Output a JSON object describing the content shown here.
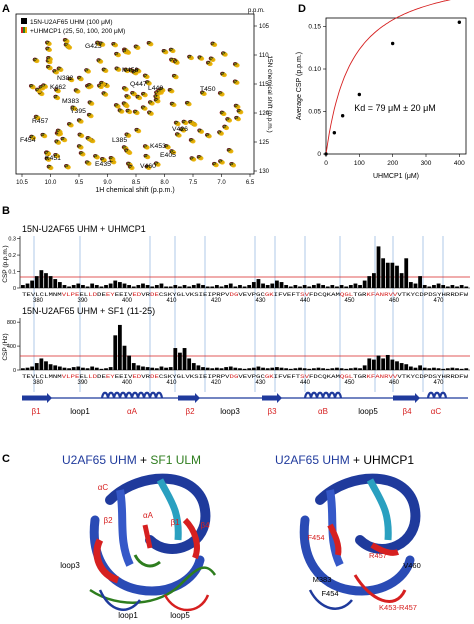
{
  "panels": {
    "A": {
      "letter": "A",
      "legend": [
        "15N-U2AF65 UHM (100 μM)",
        "+UHMCP1 (25, 50, 100, 200 μM)"
      ],
      "xlabel": "1H chemical shift (p.p.m.)",
      "ylabel": "15N chemical shift (p.p.m.)",
      "ppm_top": "p.p.m.",
      "x_ticks": [
        "10.5",
        "10.0",
        "9.5",
        "9.0",
        "8.5",
        "8.0",
        "7.5",
        "7.0",
        "6.5"
      ],
      "y_ticks": [
        "105",
        "110",
        "115",
        "120",
        "125",
        "130"
      ],
      "peaks": [
        "G423",
        "N456",
        "N382",
        "Q447",
        "K462",
        "L449",
        "T450",
        "M383",
        "R457",
        "Y395",
        "F454",
        "V426",
        "L385",
        "K453",
        "E405",
        "K451",
        "E435",
        "V460"
      ]
    },
    "D": {
      "letter": "D",
      "ylabel": "Average CSP (p.p.m.)",
      "xlabel": "UHMCP1 (μM)",
      "ppm_top": "p.p.m.",
      "annotation": "Kd = 79 μM ± 20 μM",
      "x_ticks": [
        "0",
        "100",
        "200",
        "300",
        "400"
      ],
      "y_ticks": [
        "0",
        "0.05",
        "0.10",
        "0.15"
      ]
    },
    "B": {
      "letter": "B",
      "title_top": "15N-U2AF65 UHM + UHMCP1",
      "title_bottom": "15N-U2AF65 UHM + SF1 (11-25)",
      "ylabel_top": "CSP (p.p.m.)",
      "ylabel_bottom": "CSP (Hz)",
      "y_ticks_top": [
        "0",
        "0.1",
        "0.2",
        "0.3"
      ],
      "y_ticks_bottom": [
        "0",
        "400",
        "800"
      ],
      "sequence": "TEVLCLMNMVLPEELLDDEEYEEIVEDVRDECSKYGLVKSIEIPRPVDGVEVPGCGKIFVEFTSVFDCQKAMQGLTGRKFANRVVVTKYCDPDSYHRRDFW",
      "residue_ticks": [
        "380",
        "390",
        "400",
        "410",
        "420",
        "430",
        "440",
        "450",
        "460",
        "470"
      ],
      "ss_labels": [
        "β1",
        "loop1",
        "αA",
        "β2",
        "loop3",
        "β3",
        "αB",
        "loop5",
        "β4",
        "αC"
      ]
    },
    "C": {
      "letter": "C",
      "left_title_parts": [
        "U2AF65 UHM",
        " + ",
        "SF1 ULM"
      ],
      "right_title_parts": [
        "U2AF65 UHM",
        " + UHMCP1"
      ],
      "left_labels": [
        "αC",
        "β2",
        "αA",
        "β1",
        "β4",
        "loop3",
        "loop1",
        "loop5"
      ],
      "right_labels": [
        "F454",
        "R457",
        "V460",
        "M383",
        "F454",
        "K453-R457"
      ]
    }
  },
  "colors": {
    "red": "#d62020",
    "blue": "#1f3a9c",
    "green": "#2e7d1e",
    "black": "#000000"
  },
  "chart_data": [
    {
      "type": "scatter",
      "title": "",
      "xlabel": "UHMCP1 (μM)",
      "ylabel": "Average CSP (p.p.m.)",
      "x": [
        0,
        25,
        50,
        100,
        200,
        400
      ],
      "y": [
        0.0,
        0.025,
        0.045,
        0.07,
        0.13,
        0.155
      ],
      "xlim": [
        0,
        420
      ],
      "ylim": [
        0,
        0.16
      ]
    },
    {
      "type": "bar",
      "title": "15N-U2AF65 UHM + UHMCP1",
      "ylabel": "CSP (p.p.m.)",
      "ylim": [
        0,
        0.35
      ],
      "residue_start": 375,
      "values": [
        0.02,
        0.03,
        0.05,
        0.08,
        0.12,
        0.1,
        0.08,
        0.06,
        0.04,
        0.02,
        0.01,
        0.02,
        0.03,
        0.02,
        0.01,
        0.03,
        0.02,
        0.01,
        0.02,
        0.03,
        0.05,
        0.04,
        0.03,
        0.02,
        0.01,
        0.02,
        0.03,
        0.02,
        0.01,
        0.02,
        0.03,
        0.01,
        0.01,
        0.02,
        0.01,
        0.02,
        0.01,
        0.02,
        0.03,
        0.02,
        0.01,
        0.01,
        0.02,
        0.01,
        0.02,
        0.03,
        0.01,
        0.02,
        0.01,
        0.02,
        0.04,
        0.06,
        0.03,
        0.02,
        0.03,
        0.05,
        0.04,
        0.02,
        0.01,
        0.02,
        0.01,
        0.02,
        0.01,
        0.02,
        0.03,
        0.02,
        0.01,
        0.02,
        0.01,
        0.02,
        0.01,
        0.02,
        0.03,
        0.02,
        0.05,
        0.08,
        0.1,
        0.28,
        0.2,
        0.17,
        0.17,
        0.15,
        0.1,
        0.2,
        0.04,
        0.03,
        0.08,
        0.02,
        0.01,
        0.02,
        0.03,
        0.02,
        0.01,
        0.02,
        0.01,
        0.02,
        0.01
      ]
    },
    {
      "type": "bar",
      "title": "15N-U2AF65 UHM + SF1 (11-25)",
      "ylabel": "CSP (Hz)",
      "ylim": [
        0,
        900
      ],
      "residue_start": 375,
      "values": [
        30,
        40,
        60,
        120,
        200,
        150,
        100,
        80,
        60,
        40,
        30,
        50,
        60,
        40,
        30,
        60,
        40,
        20,
        30,
        50,
        600,
        780,
        420,
        250,
        120,
        80,
        60,
        50,
        40,
        30,
        60,
        40,
        50,
        380,
        300,
        380,
        200,
        120,
        80,
        50,
        40,
        30,
        40,
        30,
        50,
        60,
        40,
        30,
        20,
        30,
        40,
        60,
        40,
        30,
        40,
        50,
        40,
        30,
        20,
        30,
        40,
        30,
        20,
        30,
        40,
        30,
        20,
        30,
        40,
        30,
        20,
        30,
        40,
        30,
        80,
        200,
        180,
        250,
        200,
        260,
        180,
        150,
        120,
        100,
        60,
        40,
        80,
        40,
        30,
        40,
        30,
        20,
        30,
        40,
        30,
        20,
        30
      ]
    }
  ]
}
